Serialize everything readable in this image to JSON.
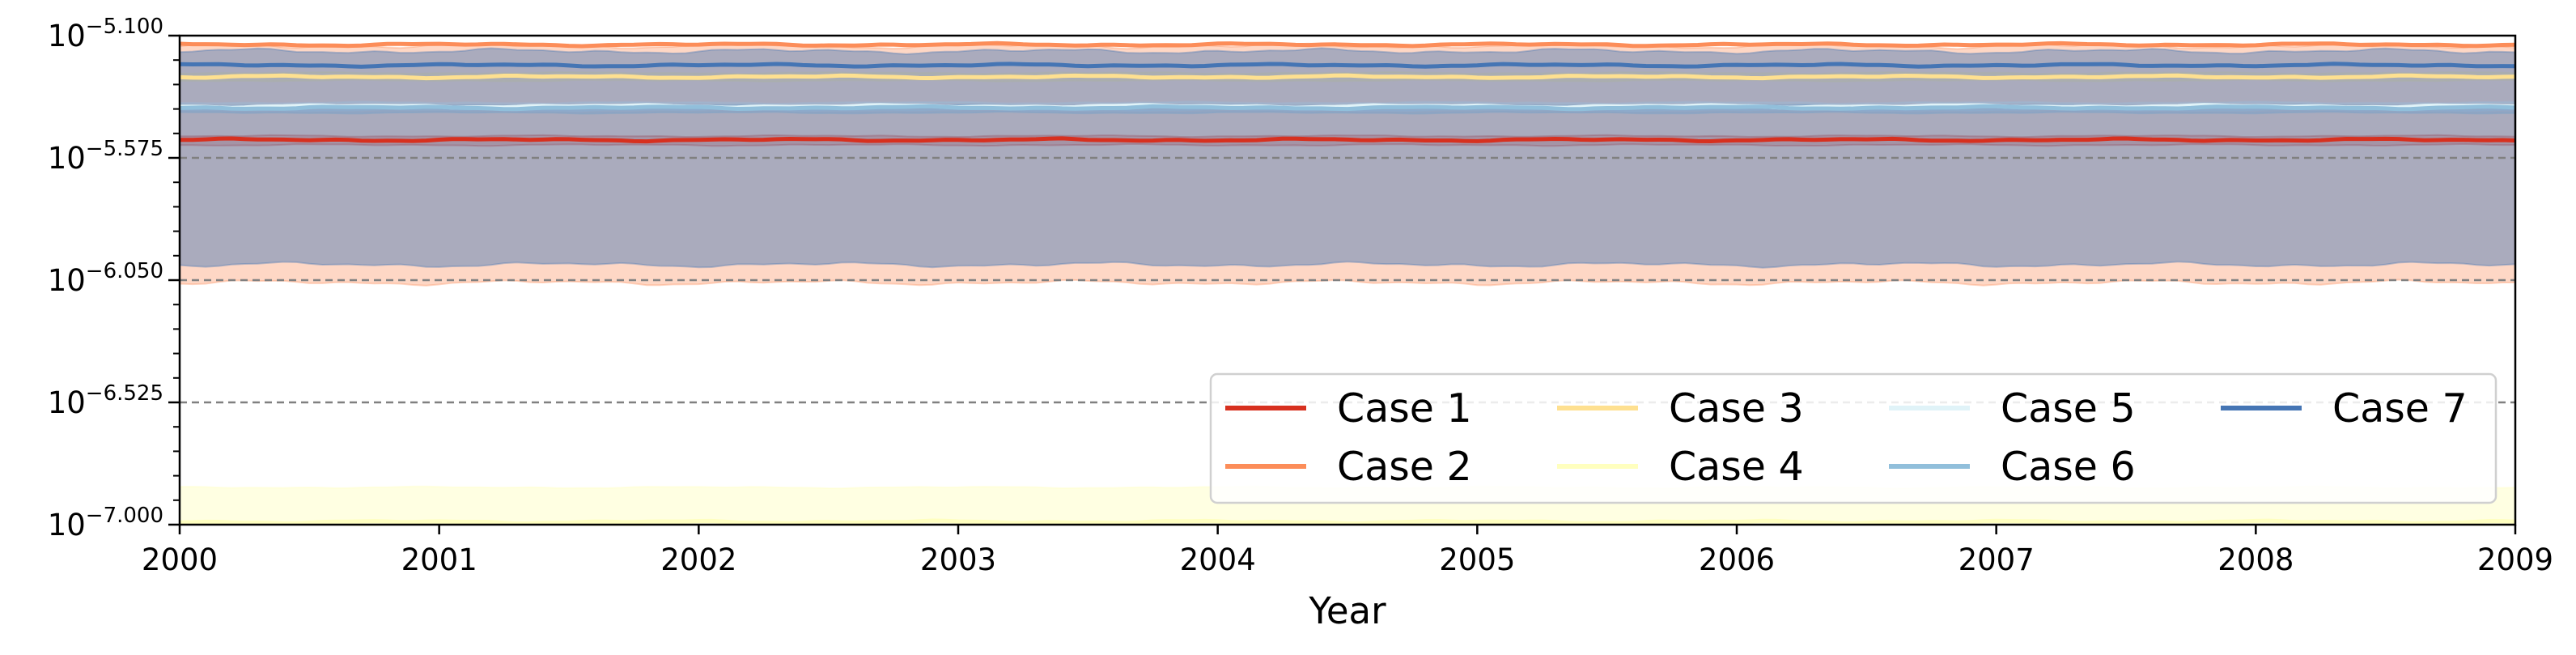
{
  "chart_data": {
    "type": "line",
    "title": "",
    "xlabel": "Year",
    "ylabel": "",
    "y_scale": "log10",
    "xlim": [
      2000,
      2009
    ],
    "ylim_log10": [
      -7.0,
      -5.1
    ],
    "x_ticks": [
      "2000",
      "2001",
      "2002",
      "2003",
      "2004",
      "2005",
      "2006",
      "2007",
      "2008",
      "2009"
    ],
    "y_ticks": [
      {
        "base": "10",
        "exponent": "−7.000",
        "log10": -7.0
      },
      {
        "base": "10",
        "exponent": "−6.525",
        "log10": -6.525
      },
      {
        "base": "10",
        "exponent": "−6.050",
        "log10": -6.05
      },
      {
        "base": "10",
        "exponent": "−5.575",
        "log10": -5.575
      },
      {
        "base": "10",
        "exponent": "−5.100",
        "log10": -5.1
      }
    ],
    "dashed_gridlines_log10": [
      -6.525,
      -6.05,
      -5.575
    ],
    "legend": {
      "placement": "lower-right",
      "columns": 4
    },
    "series": [
      {
        "name": "Case 1",
        "color": "#d7301f",
        "level_log10": -5.505,
        "band_log10": [
          -5.525,
          -5.49
        ]
      },
      {
        "name": "Case 2",
        "color": "#fc8d59",
        "level_log10": -5.135,
        "band_log10": [
          -6.06,
          -5.14
        ]
      },
      {
        "name": "Case 3",
        "color": "#fee090",
        "level_log10": -5.26,
        "band_log10": [
          -5.275,
          -5.245
        ]
      },
      {
        "name": "Case 4",
        "color": "#ffffbf",
        "level_log10": -6.99,
        "band_log10": [
          -7.0,
          -6.855
        ]
      },
      {
        "name": "Case 5",
        "color": "#e0f3f8",
        "level_log10": -5.375,
        "band_log10": [
          -5.39,
          -5.36
        ]
      },
      {
        "name": "Case 6",
        "color": "#91bfdb",
        "level_log10": -5.38,
        "band_log10": [
          -5.4,
          -5.37
        ]
      },
      {
        "name": "Case 7",
        "color": "#4575b4",
        "level_log10": -5.215,
        "band_log10": [
          -5.99,
          -5.16
        ]
      }
    ]
  }
}
